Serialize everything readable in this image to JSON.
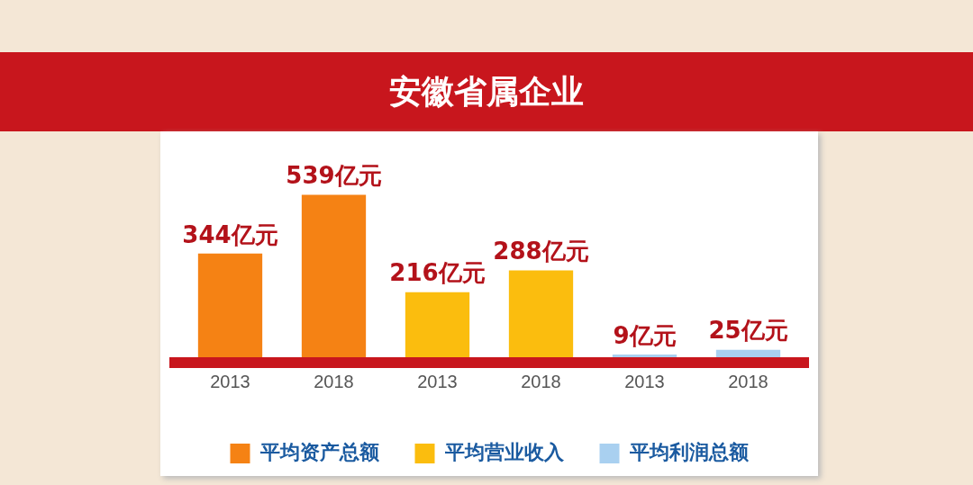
{
  "chart_data": {
    "type": "bar",
    "title": "安徽省属企业",
    "categories": [
      "2013",
      "2018",
      "2013",
      "2018",
      "2013",
      "2018"
    ],
    "series": [
      {
        "name": "平均资产总额",
        "color": "#f58214",
        "values": [
          344,
          539,
          null,
          null,
          null,
          null
        ],
        "value_labels": [
          "344亿元",
          "539亿元",
          null,
          null,
          null,
          null
        ]
      },
      {
        "name": "平均营业收入",
        "color": "#fbbd0e",
        "values": [
          null,
          null,
          216,
          288,
          null,
          null
        ],
        "value_labels": [
          null,
          null,
          "216亿元",
          "288亿元",
          null,
          null
        ]
      },
      {
        "name": "平均利润总额",
        "color": "#a9d0f0",
        "values": [
          null,
          null,
          null,
          null,
          9,
          25
        ],
        "value_labels": [
          null,
          null,
          null,
          null,
          "9亿元",
          "25亿元"
        ]
      }
    ],
    "legend": "bottom",
    "grid": false
  }
}
